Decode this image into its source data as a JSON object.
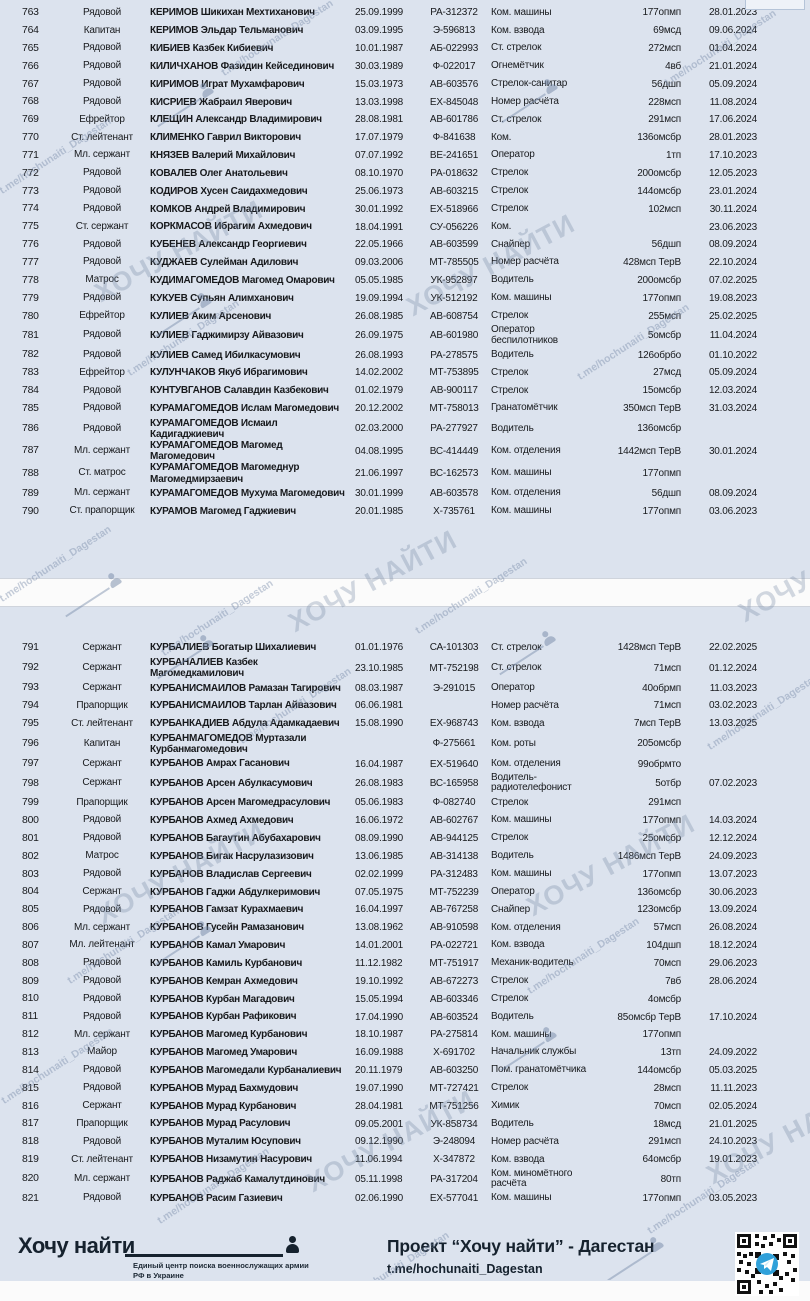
{
  "watermark": {
    "large_text": "ХОЧУ НАЙТИ",
    "small_text": "t.me/hochunaiti_Dagestan"
  },
  "colors": {
    "page_bg": "#dce3ee",
    "text": "#17191c",
    "watermark": "#768aa8",
    "footer_dark": "#16222e",
    "telegram_blue": "#30a1da"
  },
  "pages": [
    {
      "rows": [
        {
          "num": "763",
          "rank": "Рядовой",
          "name": "КЕРИМОВ Шикихан Мехтиханович",
          "dob": "25.09.1999",
          "id": "РА-312372",
          "position": "Ком. машины",
          "unit": "177опмп",
          "date": "28.01.2023"
        },
        {
          "num": "764",
          "rank": "Капитан",
          "name": "КЕРИМОВ Эльдар Тельманович",
          "dob": "03.09.1995",
          "id": "Э-596813",
          "position": "Ком. взвода",
          "unit": "69мсд",
          "date": "09.06.2024"
        },
        {
          "num": "765",
          "rank": "Рядовой",
          "name": "КИБИЕВ Казбек Кибиевич",
          "dob": "10.01.1987",
          "id": "АБ-022993",
          "position": "Ст. стрелок",
          "unit": "272мсп",
          "date": "01.04.2024"
        },
        {
          "num": "766",
          "rank": "Рядовой",
          "name": "КИЛИЧХАНОВ Фазидин Кейсединович",
          "dob": "30.03.1989",
          "id": "Ф-022017",
          "position": "Огнемётчик",
          "unit": "4вб",
          "date": "21.01.2024"
        },
        {
          "num": "767",
          "rank": "Рядовой",
          "name": "КИРИМОВ Играт Мухамфарович",
          "dob": "15.03.1973",
          "id": "АВ-603576",
          "position": "Стрелок-санитар",
          "unit": "56дшп",
          "date": "05.09.2024"
        },
        {
          "num": "768",
          "rank": "Рядовой",
          "name": "КИСРИЕВ Жабраил Яверович",
          "dob": "13.03.1998",
          "id": "ЕХ-845048",
          "position": "Номер расчёта",
          "unit": "228мсп",
          "date": "11.08.2024"
        },
        {
          "num": "769",
          "rank": "Ефрейтор",
          "name": "КЛЕЩИН Александр Владимирович",
          "dob": "28.08.1981",
          "id": "АВ-601786",
          "position": "Ст. стрелок",
          "unit": "291мсп",
          "date": "17.06.2024"
        },
        {
          "num": "770",
          "rank": "Ст. лейтенант",
          "name": "КЛИМЕНКО Гаврил Викторович",
          "dob": "17.07.1979",
          "id": "Ф-841638",
          "position": "Ком.",
          "unit": "136омсбр",
          "date": "28.01.2023"
        },
        {
          "num": "771",
          "rank": "Мл. сержант",
          "name": "КНЯЗЕВ Валерий Михайлович",
          "dob": "07.07.1992",
          "id": "ВЕ-241651",
          "position": "Оператор",
          "unit": "1тп",
          "date": "17.10.2023"
        },
        {
          "num": "772",
          "rank": "Рядовой",
          "name": "КОВАЛЕВ Олег Анатольевич",
          "dob": "08.10.1970",
          "id": "РА-018632",
          "position": "Стрелок",
          "unit": "200омсбр",
          "date": "12.05.2023"
        },
        {
          "num": "773",
          "rank": "Рядовой",
          "name": "КОДИРОВ Хусен Саидахмедович",
          "dob": "25.06.1973",
          "id": "АВ-603215",
          "position": "Стрелок",
          "unit": "144омсбр",
          "date": "23.01.2024"
        },
        {
          "num": "774",
          "rank": "Рядовой",
          "name": "КОМКОВ Андрей Владимирович",
          "dob": "30.01.1992",
          "id": "ЕХ-518966",
          "position": "Стрелок",
          "unit": "102мсп",
          "date": "30.11.2024"
        },
        {
          "num": "775",
          "rank": "Ст. сержант",
          "name": "КОРКМАСОВ Ибрагим Ахмедович",
          "dob": "18.04.1991",
          "id": "СУ-056226",
          "position": "Ком.",
          "unit": "",
          "date": "23.06.2023"
        },
        {
          "num": "776",
          "rank": "Рядовой",
          "name": "КУБЕНЕВ Александр Георгиевич",
          "dob": "22.05.1966",
          "id": "АВ-603599",
          "position": "Снайпер",
          "unit": "56дшп",
          "date": "08.09.2024"
        },
        {
          "num": "777",
          "rank": "Рядовой",
          "name": "КУДЖАЕВ Сулейман Адилович",
          "dob": "09.03.2006",
          "id": "МТ-785505",
          "position": "Номер расчёта",
          "unit": "428мсп ТерВ",
          "date": "22.10.2024"
        },
        {
          "num": "778",
          "rank": "Матрос",
          "name": "КУДИМАГОМЕДОВ Магомед Омарович",
          "dob": "05.05.1985",
          "id": "УК-952897",
          "position": "Водитель",
          "unit": "200омсбр",
          "date": "07.02.2025"
        },
        {
          "num": "779",
          "rank": "Рядовой",
          "name": "КУКУЕВ Супьян Алимханович",
          "dob": "19.09.1994",
          "id": "УК-512192",
          "position": "Ком. машины",
          "unit": "177опмп",
          "date": "19.08.2023"
        },
        {
          "num": "780",
          "rank": "Ефрейтор",
          "name": "КУЛИЕВ Аким Арсенович",
          "dob": "26.08.1985",
          "id": "АВ-608754",
          "position": "Стрелок",
          "unit": "255мсп",
          "date": "25.02.2025"
        },
        {
          "num": "781",
          "rank": "Рядовой",
          "name": "КУЛИЕВ Гаджимирзу Айвазович",
          "dob": "26.09.1975",
          "id": "АВ-601980",
          "position": "Оператор беспилотников",
          "unit": "5омсбр",
          "date": "11.04.2024"
        },
        {
          "num": "782",
          "rank": "Рядовой",
          "name": "КУЛИЕВ Самед Ибилкасумович",
          "dob": "26.08.1993",
          "id": "РА-278575",
          "position": "Водитель",
          "unit": "126обрбо",
          "date": "01.10.2022"
        },
        {
          "num": "783",
          "rank": "Ефрейтор",
          "name": "КУЛУНЧАКОВ Якуб Ибрагимович",
          "dob": "14.02.2002",
          "id": "МТ-753895",
          "position": "Стрелок",
          "unit": "27мсд",
          "date": "05.09.2024"
        },
        {
          "num": "784",
          "rank": "Рядовой",
          "name": "КУНТУВГАНОВ Салавдин Казбекович",
          "dob": "01.02.1979",
          "id": "АВ-900117",
          "position": "Стрелок",
          "unit": "15омсбр",
          "date": "12.03.2024"
        },
        {
          "num": "785",
          "rank": "Рядовой",
          "name": "КУРАМАГОМЕДОВ Ислам Магомедович",
          "dob": "20.12.2002",
          "id": "МТ-758013",
          "position": "Гранатомётчик",
          "unit": "350мсп ТерВ",
          "date": "31.03.2024"
        },
        {
          "num": "786",
          "rank": "Рядовой",
          "name": "КУРАМАГОМЕДОВ Исмаил Кадигаджиевич",
          "dob": "02.03.2000",
          "id": "РА-277927",
          "position": "Водитель",
          "unit": "136омсбр",
          "date": ""
        },
        {
          "num": "787",
          "rank": "Мл. сержант",
          "name": "КУРАМАГОМЕДОВ Магомед Магомедович",
          "dob": "04.08.1995",
          "id": "ВС-414449",
          "position": "Ком. отделения",
          "unit": "1442мсп ТерВ",
          "date": "30.01.2024"
        },
        {
          "num": "788",
          "rank": "Ст. матрос",
          "name": "КУРАМАГОМЕДОВ Магомеднур Магомедмирзаевич",
          "dob": "21.06.1997",
          "id": "ВС-162573",
          "position": "Ком. машины",
          "unit": "177опмп",
          "date": ""
        },
        {
          "num": "789",
          "rank": "Мл. сержант",
          "name": "КУРАМАГОМЕДОВ Мухума Магомедович",
          "dob": "30.01.1999",
          "id": "АВ-603578",
          "position": "Ком. отделения",
          "unit": "56дшп",
          "date": "08.09.2024"
        },
        {
          "num": "790",
          "rank": "Ст. прапорщик",
          "name": "КУРАМОВ Магомед Гаджиевич",
          "dob": "20.01.1985",
          "id": "Х-735761",
          "position": "Ком. машины",
          "unit": "177опмп",
          "date": "03.06.2023"
        }
      ]
    },
    {
      "rows": [
        {
          "num": "791",
          "rank": "Сержант",
          "name": "КУРБАЛИЕВ Богатыр Шихалиевич",
          "dob": "01.01.1976",
          "id": "СА-101303",
          "position": "Ст. стрелок",
          "unit": "1428мсп ТерВ",
          "date": "22.02.2025"
        },
        {
          "num": "792",
          "rank": "Сержант",
          "name": "КУРБАНАЛИЕВ Казбек Магомедкамилович",
          "dob": "23.10.1985",
          "id": "МТ-752198",
          "position": "Ст. стрелок",
          "unit": "71мсп",
          "date": "01.12.2024"
        },
        {
          "num": "793",
          "rank": "Сержант",
          "name": "КУРБАНИСМАИЛОВ Рамазан Тагирович",
          "dob": "08.03.1987",
          "id": "Э-291015",
          "position": "Оператор",
          "unit": "40обрмп",
          "date": "11.03.2023"
        },
        {
          "num": "794",
          "rank": "Прапорщик",
          "name": "КУРБАНИСМАИЛОВ Тарлан Айвазович",
          "dob": "06.06.1981",
          "id": "",
          "position": "Номер расчёта",
          "unit": "71мсп",
          "date": "03.02.2023"
        },
        {
          "num": "795",
          "rank": "Ст. лейтенант",
          "name": "КУРБАНКАДИЕВ Абдула Адамкадаевич",
          "dob": "15.08.1990",
          "id": "ЕХ-968743",
          "position": "Ком. взвода",
          "unit": "7мсп ТерВ",
          "date": "13.03.2025"
        },
        {
          "num": "796",
          "rank": "Капитан",
          "name": "КУРБАНМАГОМЕДОВ Муртазали Курбанмагомедович",
          "dob": "",
          "id": "Ф-275661",
          "position": "Ком. роты",
          "unit": "205омсбр",
          "date": ""
        },
        {
          "num": "797",
          "rank": "Сержант",
          "name": "КУРБАНОВ Амрах Гасанович",
          "dob": "16.04.1987",
          "id": "ЕХ-519640",
          "position": "Ком. отделения",
          "unit": "99обрмто",
          "date": ""
        },
        {
          "num": "798",
          "rank": "Сержант",
          "name": "КУРБАНОВ Арсен Абулкасумович",
          "dob": "26.08.1983",
          "id": "ВС-165958",
          "position": "Водитель-радиотелефонист",
          "unit": "5отбр",
          "date": "07.02.2023"
        },
        {
          "num": "799",
          "rank": "Прапорщик",
          "name": "КУРБАНОВ Арсен Магомедрасулович",
          "dob": "05.06.1983",
          "id": "Ф-082740",
          "position": "Стрелок",
          "unit": "291мсп",
          "date": ""
        },
        {
          "num": "800",
          "rank": "Рядовой",
          "name": "КУРБАНОВ Ахмед Ахмедович",
          "dob": "16.06.1972",
          "id": "АВ-602767",
          "position": "Ком. машины",
          "unit": "177опмп",
          "date": "14.03.2024"
        },
        {
          "num": "801",
          "rank": "Рядовой",
          "name": "КУРБАНОВ Багаутин Абубахарович",
          "dob": "08.09.1990",
          "id": "АВ-944125",
          "position": "Стрелок",
          "unit": "25омсбр",
          "date": "12.12.2024"
        },
        {
          "num": "802",
          "rank": "Матрос",
          "name": "КУРБАНОВ Бигак Насрулазизович",
          "dob": "13.06.1985",
          "id": "АВ-314138",
          "position": "Водитель",
          "unit": "1486мсп ТерВ",
          "date": "24.09.2023"
        },
        {
          "num": "803",
          "rank": "Рядовой",
          "name": "КУРБАНОВ Владислав Сергеевич",
          "dob": "02.02.1999",
          "id": "РА-312483",
          "position": "Ком. машины",
          "unit": "177опмп",
          "date": "13.07.2023"
        },
        {
          "num": "804",
          "rank": "Сержант",
          "name": "КУРБАНОВ Гаджи Абдулкеримович",
          "dob": "07.05.1975",
          "id": "МТ-752239",
          "position": "Оператор",
          "unit": "136омсбр",
          "date": "30.06.2023"
        },
        {
          "num": "805",
          "rank": "Рядовой",
          "name": "КУРБАНОВ Гамзат Курахмаевич",
          "dob": "16.04.1997",
          "id": "АВ-767258",
          "position": "Снайпер",
          "unit": "123омсбр",
          "date": "13.09.2024"
        },
        {
          "num": "806",
          "rank": "Мл. сержант",
          "name": "КУРБАНОВ Гусейн Рамазанович",
          "dob": "13.08.1962",
          "id": "АВ-910598",
          "position": "Ком. отделения",
          "unit": "57мсп",
          "date": "26.08.2024"
        },
        {
          "num": "807",
          "rank": "Мл. лейтенант",
          "name": "КУРБАНОВ Камал Умарович",
          "dob": "14.01.2001",
          "id": "РА-022721",
          "position": "Ком. взвода",
          "unit": "104дшп",
          "date": "18.12.2024"
        },
        {
          "num": "808",
          "rank": "Рядовой",
          "name": "КУРБАНОВ Камиль Курбанович",
          "dob": "11.12.1982",
          "id": "МТ-751917",
          "position": "Механик-водитель",
          "unit": "70мсп",
          "date": "29.06.2023"
        },
        {
          "num": "809",
          "rank": "Рядовой",
          "name": "КУРБАНОВ Кемран Ахмедович",
          "dob": "19.10.1992",
          "id": "АВ-672273",
          "position": "Стрелок",
          "unit": "7вб",
          "date": "28.06.2024"
        },
        {
          "num": "810",
          "rank": "Рядовой",
          "name": "КУРБАНОВ Курбан Магадович",
          "dob": "15.05.1994",
          "id": "АВ-603346",
          "position": "Стрелок",
          "unit": "4омсбр",
          "date": ""
        },
        {
          "num": "811",
          "rank": "Рядовой",
          "name": "КУРБАНОВ Курбан Рафикович",
          "dob": "17.04.1990",
          "id": "АВ-603524",
          "position": "Водитель",
          "unit": "85омсбр ТерВ",
          "date": "17.10.2024"
        },
        {
          "num": "812",
          "rank": "Мл. сержант",
          "name": "КУРБАНОВ Магомед Курбанович",
          "dob": "18.10.1987",
          "id": "РА-275814",
          "position": "Ком. машины",
          "unit": "177опмп",
          "date": ""
        },
        {
          "num": "813",
          "rank": "Майор",
          "name": "КУРБАНОВ Магомед Умарович",
          "dob": "16.09.1988",
          "id": "Х-691702",
          "position": "Начальник службы",
          "unit": "13тп",
          "date": "24.09.2022"
        },
        {
          "num": "814",
          "rank": "Рядовой",
          "name": "КУРБАНОВ Магомедали Курбаналиевич",
          "dob": "20.11.1979",
          "id": "АВ-603250",
          "position": "Пом. гранатомётчика",
          "unit": "144омсбр",
          "date": "05.03.2025"
        },
        {
          "num": "815",
          "rank": "Рядовой",
          "name": "КУРБАНОВ Мурад Бахмудович",
          "dob": "19.07.1990",
          "id": "МТ-727421",
          "position": "Стрелок",
          "unit": "28мсп",
          "date": "11.11.2023"
        },
        {
          "num": "816",
          "rank": "Сержант",
          "name": "КУРБАНОВ Мурад Курбанович",
          "dob": "28.04.1981",
          "id": "МТ-751256",
          "position": "Химик",
          "unit": "70мсп",
          "date": "02.05.2024"
        },
        {
          "num": "817",
          "rank": "Прапорщик",
          "name": "КУРБАНОВ Мурад Расулович",
          "dob": "09.05.2001",
          "id": "УК-858734",
          "position": "Водитель",
          "unit": "18мсд",
          "date": "21.01.2025"
        },
        {
          "num": "818",
          "rank": "Рядовой",
          "name": "КУРБАНОВ Муталим Юсупович",
          "dob": "09.12.1990",
          "id": "Э-248094",
          "position": "Номер расчёта",
          "unit": "291мсп",
          "date": "24.10.2023"
        },
        {
          "num": "819",
          "rank": "Ст. лейтенант",
          "name": "КУРБАНОВ Низамутин Насурович",
          "dob": "11.06.1994",
          "id": "Х-347872",
          "position": "Ком. взвода",
          "unit": "64омсбр",
          "date": "19.01.2023"
        },
        {
          "num": "820",
          "rank": "Мл. сержант",
          "name": "КУРБАНОВ Раджаб Камалутдинович",
          "dob": "05.11.1998",
          "id": "РА-317204",
          "position": "Ком. миномётного расчёта",
          "unit": "80тп",
          "date": ""
        },
        {
          "num": "821",
          "rank": "Рядовой",
          "name": "КУРБАНОВ Расим Газиевич",
          "dob": "02.06.1990",
          "id": "ЕХ-577041",
          "position": "Ком. машины",
          "unit": "177опмп",
          "date": "03.05.2023"
        }
      ]
    }
  ],
  "footer": {
    "logo_text": "Хочу найти",
    "logo_subtitle": "Единый центр поиска военнослужащих армии РФ в Украине",
    "project_title": "Проект “Хочу найти” - Дагестан",
    "telegram_link": "t.me/hochunaiti_Dagestan"
  }
}
